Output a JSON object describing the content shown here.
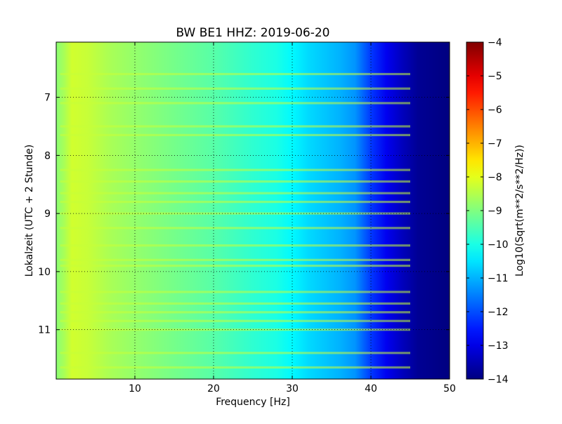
{
  "chart_data": {
    "type": "heatmap",
    "title": "BW BE1 HHZ: 2019-06-20",
    "xlabel": "Frequency [Hz]",
    "ylabel": "Lokalzeit (UTC + 2 Stunde)",
    "xlim": [
      0,
      50
    ],
    "ylim": [
      11.85,
      6.05
    ],
    "x_ticks": [
      10,
      20,
      30,
      40,
      50
    ],
    "y_ticks": [
      7,
      8,
      9,
      10,
      11
    ],
    "grid": true,
    "colormap": "jet",
    "colorbar": {
      "label": "Log10(Sqrt(m**2/s**2/Hz))",
      "range": [
        -14,
        -4
      ],
      "ticks": [
        -4,
        -5,
        -6,
        -7,
        -8,
        -9,
        -10,
        -11,
        -12,
        -13,
        -14
      ]
    },
    "level_profile": {
      "frequency_hz": [
        0,
        1,
        2,
        4,
        7,
        10,
        15,
        20,
        25,
        28,
        30,
        32,
        34,
        36,
        38,
        40,
        42,
        44,
        46,
        50
      ],
      "log10_amplitude": [
        -8.9,
        -8.6,
        -8.2,
        -8.3,
        -8.6,
        -8.8,
        -9.1,
        -9.4,
        -9.8,
        -10.0,
        -10.3,
        -10.6,
        -10.8,
        -11.0,
        -11.3,
        -12.2,
        -12.9,
        -13.4,
        -13.8,
        -14.0
      ]
    },
    "bright_bands_hour": [
      6.6,
      6.85,
      7.1,
      7.5,
      7.65,
      8.25,
      8.45,
      8.65,
      8.8,
      9.0,
      9.25,
      9.55,
      9.8,
      9.9,
      10.35,
      10.55,
      10.7,
      10.85,
      11.0,
      11.4,
      11.65
    ]
  }
}
